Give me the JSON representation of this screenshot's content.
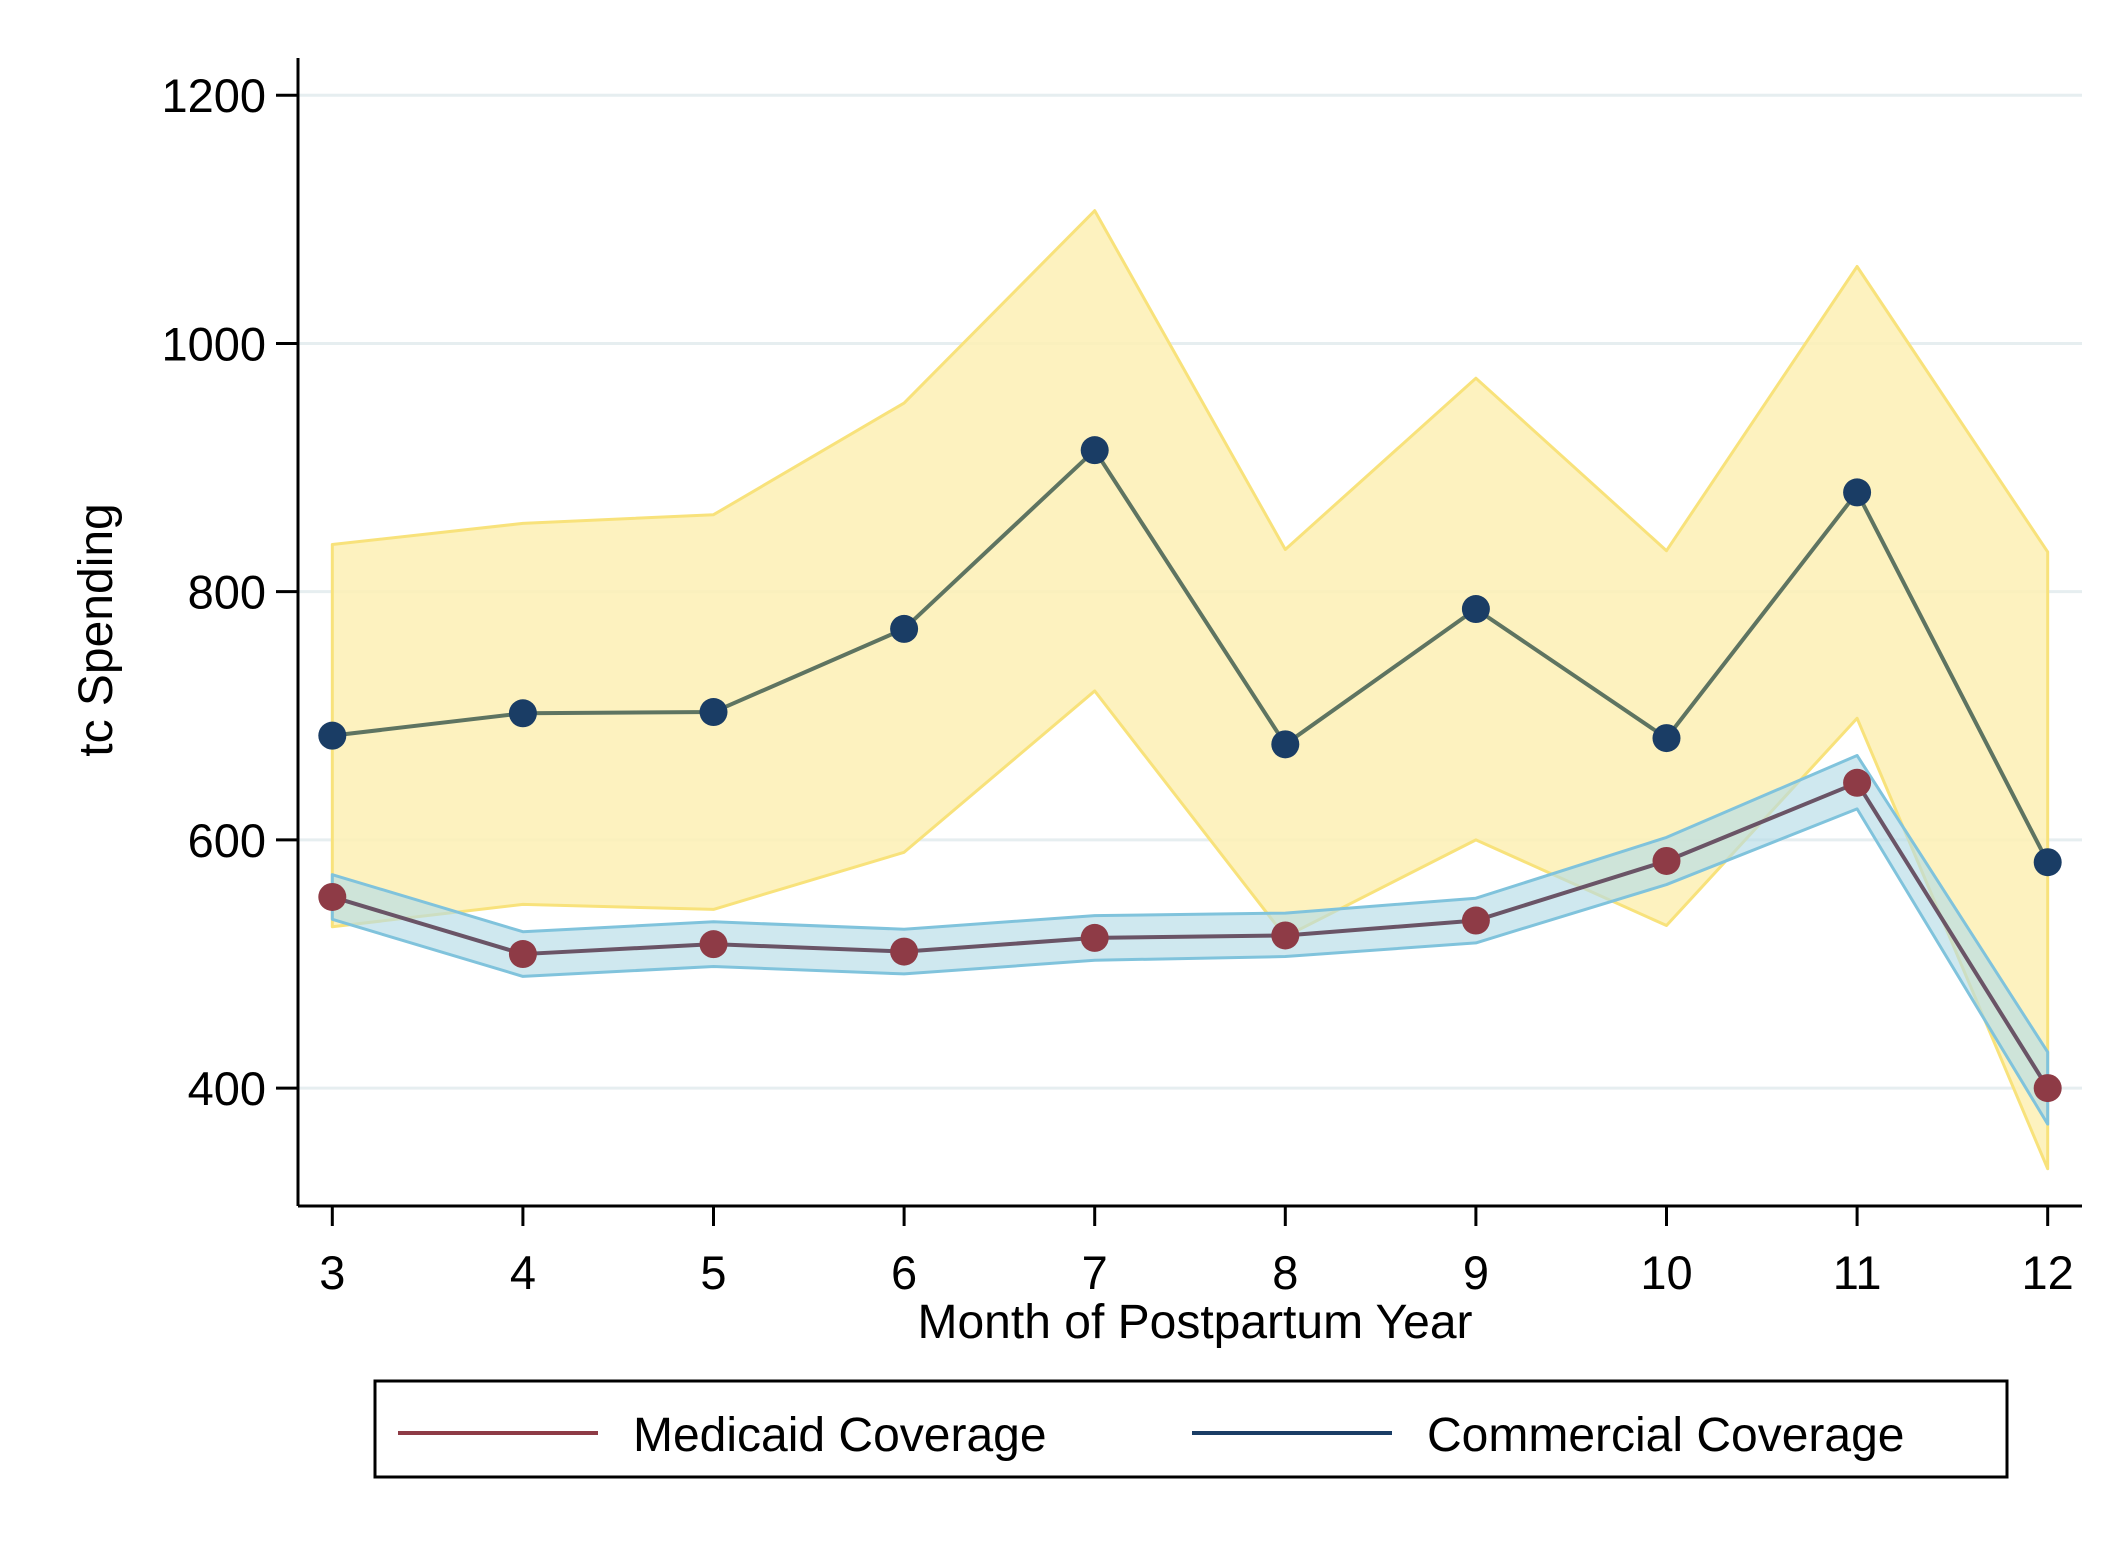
{
  "chart_data": {
    "type": "line",
    "title": "",
    "xlabel": "Month of Postpartum Year",
    "ylabel": "tc Spending",
    "x": [
      3,
      4,
      5,
      6,
      7,
      8,
      9,
      10,
      11,
      12
    ],
    "x_tick_labels": [
      "3",
      "4",
      "5",
      "6",
      "7",
      "8",
      "9",
      "10",
      "11",
      "12"
    ],
    "xlim": [
      2.82,
      12.18
    ],
    "y_ticks": [
      400,
      600,
      800,
      1000,
      1200
    ],
    "y_tick_labels": [
      "400",
      "600",
      "800",
      "1000",
      "1200"
    ],
    "ylim": [
      305,
      1230
    ],
    "grid": true,
    "legend_position": "bottom",
    "series": [
      {
        "name": "Medicaid Coverage",
        "values": [
          554,
          508,
          516,
          510,
          521,
          523,
          535,
          583,
          646,
          400
        ],
        "ci_lower": [
          536,
          490,
          498,
          492,
          503,
          506,
          517,
          564,
          625,
          371
        ],
        "ci_upper": [
          572,
          526,
          534,
          528,
          539,
          541,
          553,
          602,
          668,
          429
        ],
        "line_color": "#8e3b46",
        "marker_color": "#8e3b46",
        "band_fill": "#b6dbe6",
        "band_edge": "#80c3dc"
      },
      {
        "name": "Commercial Coverage",
        "values": [
          684,
          702,
          703,
          770,
          914,
          677,
          786,
          682,
          880,
          582
        ],
        "ci_lower": [
          530,
          548,
          544,
          590,
          720,
          522,
          600,
          531,
          698,
          335
        ],
        "ci_upper": [
          838,
          855,
          862,
          952,
          1107,
          834,
          972,
          833,
          1062,
          832
        ],
        "line_color": "#1a3d65",
        "marker_color": "#1a3d65",
        "band_fill": "#fdf0b4",
        "band_edge": "#f8e27b",
        "connector_color": "#5e7461"
      }
    ]
  }
}
